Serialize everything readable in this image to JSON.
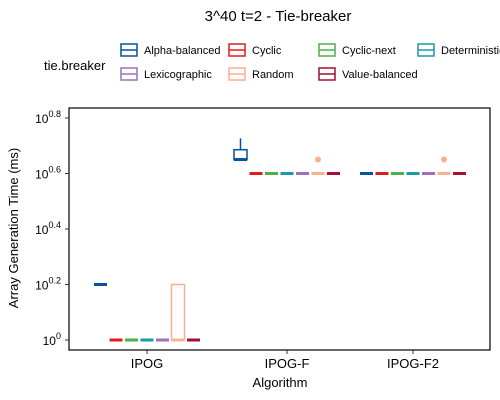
{
  "chart_data": {
    "type": "boxplot",
    "title": "3^40 t=2 - Tie-breaker",
    "xlabel": "Algorithm",
    "ylabel": "Array Generation Time (ms)",
    "y_scale": "log10",
    "ylim": [
      1,
      6.31
    ],
    "yticks": [
      {
        "value": 1,
        "base": "10",
        "exp": "0"
      },
      {
        "value": 1.585,
        "base": "10",
        "exp": "0.2"
      },
      {
        "value": 2.512,
        "base": "10",
        "exp": "0.4"
      },
      {
        "value": 3.981,
        "base": "10",
        "exp": "0.6"
      },
      {
        "value": 6.31,
        "base": "10",
        "exp": "0.8"
      }
    ],
    "categories": [
      "IPOG",
      "IPOG-F",
      "IPOG-F2"
    ],
    "legend_title": "tie.breaker",
    "legend_position": "top",
    "series": [
      {
        "name": "Alpha-balanced",
        "color": "#08519c",
        "boxes": [
          {
            "min": 1.585,
            "q1": 1.585,
            "median": 1.585,
            "q3": 1.585,
            "max": 1.585,
            "outliers": []
          },
          {
            "min": 4.47,
            "q1": 4.47,
            "median": 4.47,
            "q3": 4.85,
            "max": 5.33,
            "outliers": []
          },
          {
            "min": 3.981,
            "q1": 3.981,
            "median": 3.981,
            "q3": 3.981,
            "max": 3.981,
            "outliers": []
          }
        ]
      },
      {
        "name": "Cyclic",
        "color": "#e31a1c",
        "boxes": [
          {
            "min": 1,
            "q1": 1,
            "median": 1,
            "q3": 1,
            "max": 1,
            "outliers": []
          },
          {
            "min": 3.981,
            "q1": 3.981,
            "median": 3.981,
            "q3": 3.981,
            "max": 3.981,
            "outliers": []
          },
          {
            "min": 3.981,
            "q1": 3.981,
            "median": 3.981,
            "q3": 3.981,
            "max": 3.981,
            "outliers": []
          }
        ]
      },
      {
        "name": "Cyclic-next",
        "color": "#4daf4a",
        "boxes": [
          {
            "min": 1,
            "q1": 1,
            "median": 1,
            "q3": 1,
            "max": 1,
            "outliers": []
          },
          {
            "min": 3.981,
            "q1": 3.981,
            "median": 3.981,
            "q3": 3.981,
            "max": 3.981,
            "outliers": []
          },
          {
            "min": 3.981,
            "q1": 3.981,
            "median": 3.981,
            "q3": 3.981,
            "max": 3.981,
            "outliers": []
          }
        ]
      },
      {
        "name": "Deterministic",
        "color": "#1a9ba8",
        "boxes": [
          {
            "min": 1,
            "q1": 1,
            "median": 1,
            "q3": 1,
            "max": 1,
            "outliers": []
          },
          {
            "min": 3.981,
            "q1": 3.981,
            "median": 3.981,
            "q3": 3.981,
            "max": 3.981,
            "outliers": []
          },
          {
            "min": 3.981,
            "q1": 3.981,
            "median": 3.981,
            "q3": 3.981,
            "max": 3.981,
            "outliers": []
          }
        ]
      },
      {
        "name": "Lexicographic",
        "color": "#9e6fbf",
        "boxes": [
          {
            "min": 1,
            "q1": 1,
            "median": 1,
            "q3": 1,
            "max": 1,
            "outliers": []
          },
          {
            "min": 3.981,
            "q1": 3.981,
            "median": 3.981,
            "q3": 3.981,
            "max": 3.981,
            "outliers": []
          },
          {
            "min": 3.981,
            "q1": 3.981,
            "median": 3.981,
            "q3": 3.981,
            "max": 3.981,
            "outliers": []
          }
        ]
      },
      {
        "name": "Random",
        "color": "#fcae91",
        "boxes": [
          {
            "min": 1,
            "q1": 1,
            "median": 1,
            "q3": 1.585,
            "max": 1.585,
            "outliers": []
          },
          {
            "min": 3.981,
            "q1": 3.981,
            "median": 3.981,
            "q3": 3.981,
            "max": 3.981,
            "outliers": [
              4.47
            ]
          },
          {
            "min": 3.981,
            "q1": 3.981,
            "median": 3.981,
            "q3": 3.981,
            "max": 3.981,
            "outliers": [
              4.47
            ]
          }
        ]
      },
      {
        "name": "Value-balanced",
        "color": "#a50f35",
        "boxes": [
          {
            "min": 1,
            "q1": 1,
            "median": 1,
            "q3": 1,
            "max": 1,
            "outliers": []
          },
          {
            "min": 3.981,
            "q1": 3.981,
            "median": 3.981,
            "q3": 3.981,
            "max": 3.981,
            "outliers": []
          },
          {
            "min": 3.981,
            "q1": 3.981,
            "median": 3.981,
            "q3": 3.981,
            "max": 3.981,
            "outliers": []
          }
        ]
      }
    ]
  }
}
